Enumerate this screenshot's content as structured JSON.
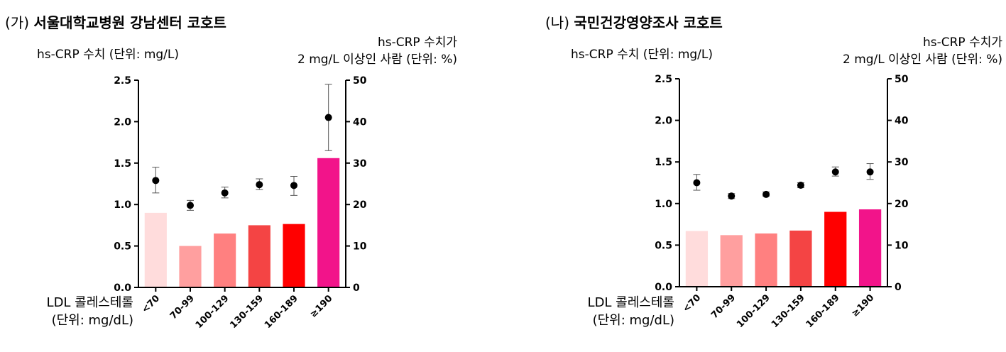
{
  "panels": [
    {
      "title_tag": "(가)",
      "title_name": "서울대학교병원 강남센터 코호트",
      "ylabel_left": "hs-CRP 수치 (단위: mg/L)",
      "ylabel_right_line1": "hs-CRP 수치가",
      "ylabel_right_line2": "2 mg/L 이상인 사람 (단위: %)",
      "xlabel_line1": "LDL 콜레스테롤",
      "xlabel_line2": "(단위: mg/dL)"
    },
    {
      "title_tag": "(나)",
      "title_name": "국민건강영양조사 코호트",
      "ylabel_left": "hs-CRP 수치 (단위: mg/L)",
      "ylabel_right_line1": "hs-CRP 수치가",
      "ylabel_right_line2": "2 mg/L 이상인 사람 (단위: %)",
      "xlabel_line1": "LDL 콜레스테롤",
      "xlabel_line2": "(단위: mg/dL)"
    }
  ],
  "chart_data": [
    {
      "type": "bar",
      "categories": [
        "<70",
        "70-99",
        "100-129",
        "130-159",
        "160-189",
        "≥190"
      ],
      "bar_axis": "right",
      "bar_values_percent": [
        18,
        10,
        13,
        15,
        15.3,
        31.2
      ],
      "bar_colors": [
        "#ffdcdc",
        "#ff9f9f",
        "#ff8080",
        "#f44444",
        "#ff0000",
        "#f2148a"
      ],
      "points_axis": "left",
      "point_values": [
        1.29,
        0.99,
        1.14,
        1.24,
        1.23,
        2.05
      ],
      "point_error_low": [
        1.14,
        0.93,
        1.08,
        1.18,
        1.11,
        1.65
      ],
      "point_error_high": [
        1.45,
        1.05,
        1.21,
        1.31,
        1.34,
        2.45
      ],
      "left_ylim": [
        0,
        2.5
      ],
      "left_ticks": [
        "0.0",
        "0.5",
        "1.0",
        "1.5",
        "2.0",
        "2.5"
      ],
      "right_ylim": [
        0,
        50
      ],
      "right_ticks": [
        "0",
        "10",
        "20",
        "30",
        "40",
        "50"
      ],
      "grid": false
    },
    {
      "type": "bar",
      "categories": [
        "<70",
        "70-99",
        "100-129",
        "130-159",
        "160-189",
        "≥190"
      ],
      "bar_axis": "right",
      "bar_values_percent": [
        13.4,
        12.4,
        12.8,
        13.5,
        18,
        18.6
      ],
      "bar_colors": [
        "#ffdcdc",
        "#ff9f9f",
        "#ff8080",
        "#f44444",
        "#ff0000",
        "#f2148a"
      ],
      "points_axis": "left",
      "point_values": [
        1.25,
        1.09,
        1.11,
        1.22,
        1.38,
        1.38
      ],
      "point_error_low": [
        1.16,
        1.06,
        1.09,
        1.19,
        1.33,
        1.29
      ],
      "point_error_high": [
        1.35,
        1.12,
        1.14,
        1.25,
        1.44,
        1.48
      ],
      "left_ylim": [
        0,
        2.5
      ],
      "left_ticks": [
        "0.0",
        "0.5",
        "1.0",
        "1.5",
        "2.0",
        "2.5"
      ],
      "right_ylim": [
        0,
        50
      ],
      "right_ticks": [
        "0",
        "10",
        "20",
        "30",
        "40",
        "50"
      ],
      "grid": false
    }
  ]
}
